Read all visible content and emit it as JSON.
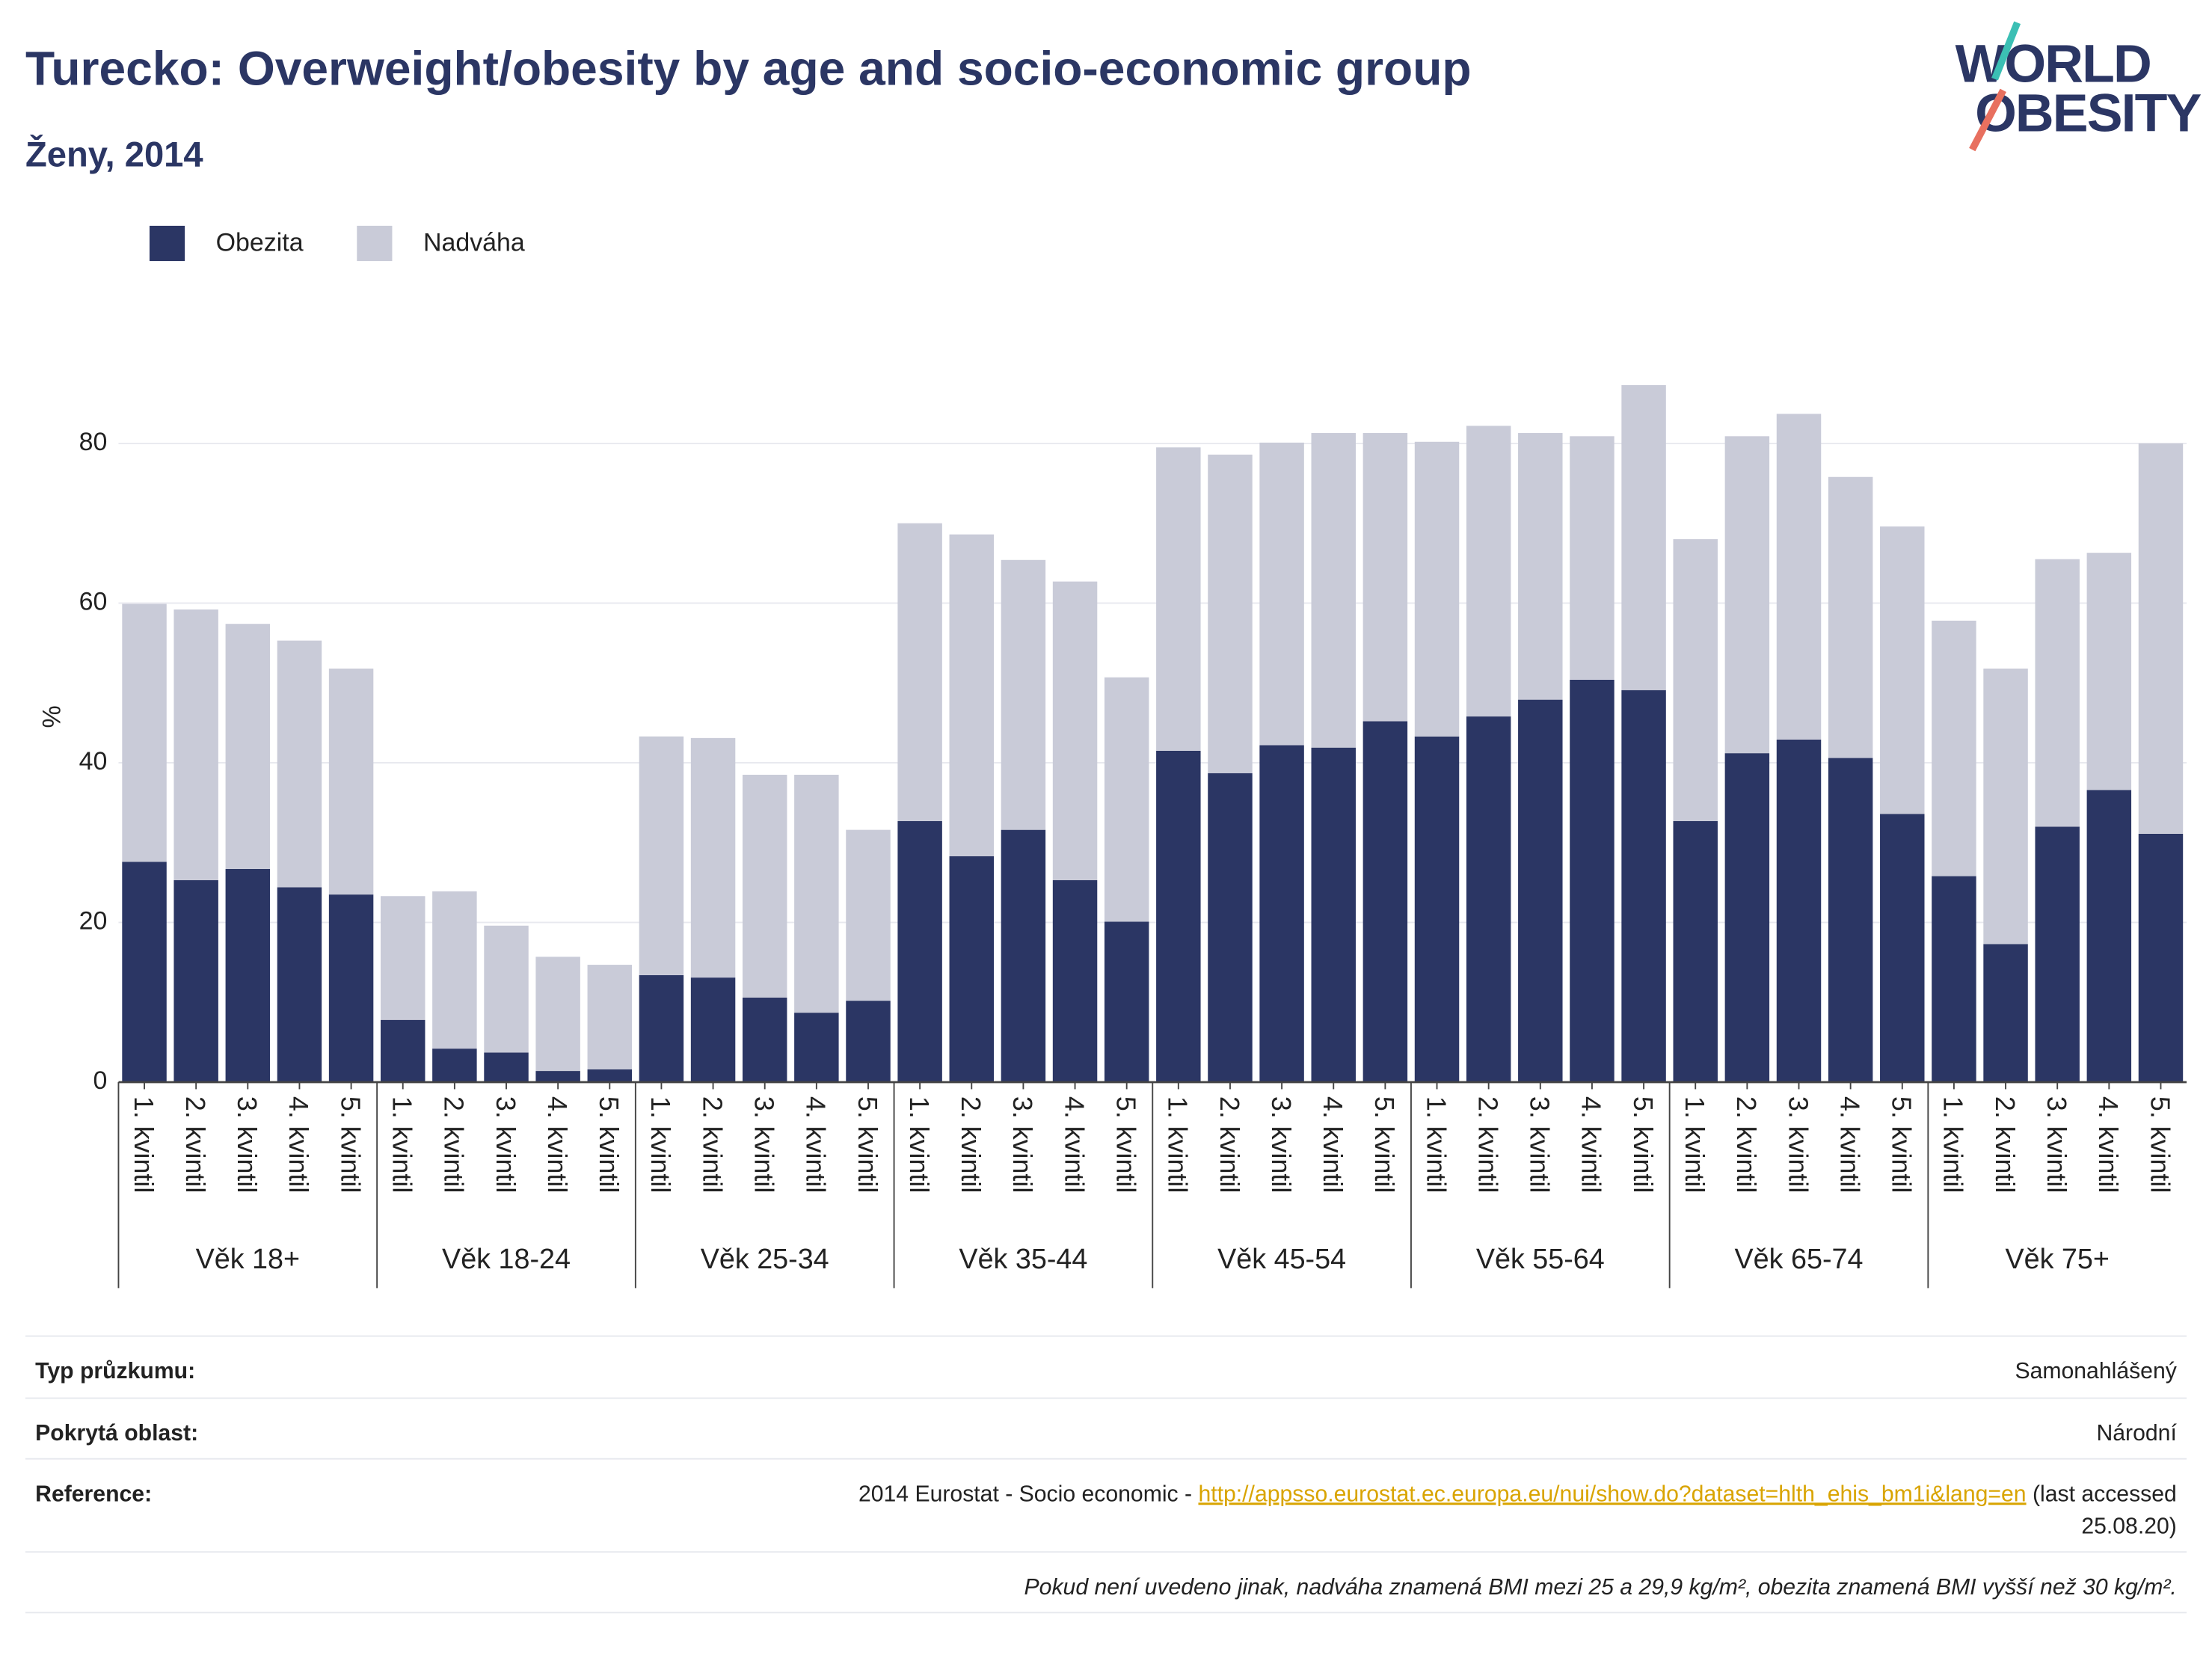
{
  "chart_data": {
    "type": "stacked_bar",
    "title": "Turecko: Overweight/obesity by age and socio-economic group",
    "subtitle": "Ženy, 2014",
    "logo": [
      "WORLD",
      "OBESITY"
    ],
    "ylabel": "%",
    "categories": [
      "1. kvintil",
      "2. kvintil",
      "3. kvintil",
      "4. kvintil",
      "5. kvintil",
      "1. kvintil",
      "2. kvintil",
      "3. kvintil",
      "4. kvintil",
      "5. kvintil",
      "1. kvintil",
      "2. kvintil",
      "3. kvintil",
      "4. kvintil",
      "5. kvintil",
      "1. kvintil",
      "2. kvintil",
      "3. kvintil",
      "4. kvintil",
      "5. kvintil",
      "1. kvintil",
      "2. kvintil",
      "3. kvintil",
      "4. kvintil",
      "5. kvintil",
      "1. kvintil",
      "2. kvintil",
      "3. kvintil",
      "4. kvintil",
      "5. kvintil",
      "1. kvintil",
      "2. kvintil",
      "3. kvintil",
      "4. kvintil",
      "5. kvintil",
      "1. kvintil",
      "2. kvintil",
      "3. kvintil",
      "4. kvintil",
      "5. kvintil"
    ],
    "groups": [
      "Věk 18+",
      "Věk 18-24",
      "Věk 25-34",
      "Věk 35-44",
      "Věk 45-54",
      "Věk 55-64",
      "Věk 65-74",
      "Věk 75+"
    ],
    "series": [
      {
        "name": "Obezita",
        "color": "#2b3664",
        "values": [
          27.6,
          25.3,
          26.7,
          24.4,
          23.5,
          7.8,
          4.2,
          3.7,
          1.4,
          1.6,
          13.4,
          13.1,
          10.6,
          8.7,
          10.2,
          32.7,
          28.3,
          31.6,
          25.3,
          20.1,
          41.5,
          38.7,
          42.2,
          41.9,
          45.2,
          43.3,
          45.8,
          47.9,
          50.4,
          49.1,
          32.7,
          41.2,
          42.9,
          40.6,
          33.6,
          25.8,
          17.3,
          32.0,
          36.6,
          31.1
        ]
      },
      {
        "name": "Nadváha",
        "color": "#c9cbd8",
        "values": [
          32.3,
          33.9,
          30.7,
          30.9,
          28.3,
          15.5,
          19.7,
          15.9,
          14.3,
          13.1,
          29.9,
          30.0,
          27.9,
          29.8,
          21.4,
          37.3,
          40.3,
          33.8,
          37.4,
          30.6,
          38.0,
          39.9,
          37.9,
          39.4,
          36.1,
          36.9,
          36.4,
          33.4,
          30.5,
          38.2,
          35.3,
          39.7,
          40.8,
          35.2,
          36.0,
          32.0,
          34.5,
          33.5,
          29.7,
          48.9
        ]
      }
    ],
    "ylim": [
      0,
      91
    ],
    "yticks": [
      0,
      20,
      40,
      60,
      80
    ],
    "grid": true,
    "legend": "top-left"
  },
  "footer": {
    "rows": [
      {
        "label": "Typ průzkumu:",
        "value": "Samonahlášený"
      },
      {
        "label": "Pokrytá oblast:",
        "value": "Národní"
      }
    ],
    "reference": {
      "label": "Reference:",
      "text": "2014 Eurostat - Socio economic -",
      "link": "http://appsso.eurostat.ec.europa.eu/nui/show.do?dataset=hlth_ehis_bm1i&lang=en",
      "line1_end": "(last accessed",
      "line2": "25.08.20)"
    },
    "note": "Pokud není uvedeno jinak, nadváha znamená BMI mezi 25 a 29,9 kg/m², obezita znamená BMI vyšší než 30 kg/m²."
  }
}
